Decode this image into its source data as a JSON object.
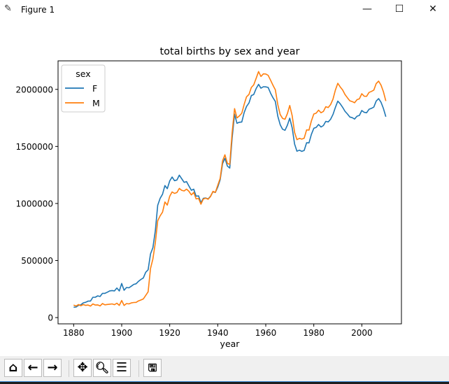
{
  "window": {
    "title": "Figure 1",
    "icon": "feather-icon",
    "controls": [
      "minimize",
      "maximize",
      "close"
    ]
  },
  "toolbar": {
    "buttons": [
      {
        "name": "home",
        "glyph": "⌂"
      },
      {
        "name": "back",
        "glyph": "🡐"
      },
      {
        "name": "forward",
        "glyph": "🡒"
      },
      {
        "name": "pan",
        "glyph": "✥"
      },
      {
        "name": "zoom",
        "glyph": "🔍"
      },
      {
        "name": "configure-subplots",
        "glyph": "☰"
      },
      {
        "name": "save",
        "glyph": "💾"
      }
    ]
  },
  "chart_data": {
    "type": "line",
    "title": "total births by sex and year",
    "xlabel": "year",
    "ylabel": "",
    "xlim": [
      1873.5,
      2016.5
    ],
    "ylim": [
      -55000,
      2250000
    ],
    "xticks": [
      1880,
      1900,
      1920,
      1940,
      1960,
      1980,
      2000
    ],
    "yticks": [
      0,
      500000,
      1000000,
      1500000,
      2000000
    ],
    "ytick_labels": [
      "0",
      "500000",
      "1000000",
      "1500000",
      "2000000"
    ],
    "legend": {
      "title": "sex",
      "placement": "top-left"
    },
    "grid": false,
    "x_start": 1880,
    "x_end": 2010,
    "series": [
      {
        "name": "F",
        "color": "#1f77b4",
        "values": [
          91000,
          92000,
          107000,
          112000,
          129000,
          134000,
          144000,
          145000,
          178000,
          178000,
          190000,
          185000,
          212000,
          212000,
          222000,
          234000,
          237000,
          234000,
          259000,
          233000,
          299000,
          239000,
          264000,
          261000,
          275000,
          291000,
          296000,
          318000,
          334000,
          347000,
          397000,
          419000,
          558000,
          612000,
          761000,
          984000,
          1044000,
          1081000,
          1157000,
          1130000,
          1198000,
          1232000,
          1200000,
          1206000,
          1248000,
          1217000,
          1185000,
          1192000,
          1153000,
          1116000,
          1125000,
          1064000,
          1067000,
          1007000,
          1045000,
          1048000,
          1040000,
          1064000,
          1103000,
          1096000,
          1143000,
          1208000,
          1348000,
          1396000,
          1328000,
          1310000,
          1573000,
          1783000,
          1703000,
          1712000,
          1714000,
          1797000,
          1850000,
          1881000,
          1946000,
          1955000,
          2008000,
          2044000,
          2010000,
          2023000,
          2022000,
          2017000,
          1967000,
          1927000,
          1894000,
          1765000,
          1691000,
          1651000,
          1641000,
          1686000,
          1748000,
          1662000,
          1521000,
          1458000,
          1467000,
          1457000,
          1465000,
          1532000,
          1531000,
          1605000,
          1659000,
          1667000,
          1692000,
          1670000,
          1683000,
          1720000,
          1715000,
          1738000,
          1780000,
          1843000,
          1897000,
          1874000,
          1843000,
          1808000,
          1785000,
          1758000,
          1752000,
          1740000,
          1765000,
          1772000,
          1815000,
          1799000,
          1795000,
          1825000,
          1834000,
          1845000,
          1898000,
          1919000,
          1887000,
          1833000,
          1760000
        ]
      },
      {
        "name": "M",
        "color": "#ff7f0e",
        "values": [
          110000,
          101000,
          114000,
          104000,
          114000,
          107000,
          110000,
          101000,
          120000,
          110000,
          111000,
          102000,
          123000,
          112000,
          115000,
          117000,
          120000,
          113000,
          126000,
          107000,
          150000,
          106000,
          123000,
          120000,
          128000,
          132000,
          133000,
          146000,
          154000,
          163000,
          194000,
          226000,
          430000,
          513000,
          656000,
          848000,
          891000,
          924000,
          1013000,
          986000,
          1064000,
          1101000,
          1088000,
          1096000,
          1132000,
          1115000,
          1110000,
          1126000,
          1107000,
          1075000,
          1097000,
          1040000,
          1045000,
          994000,
          1039000,
          1046000,
          1037000,
          1061000,
          1106000,
          1097000,
          1158000,
          1220000,
          1373000,
          1427000,
          1352000,
          1342000,
          1620000,
          1831000,
          1750000,
          1767000,
          1791000,
          1868000,
          1935000,
          1956000,
          2017000,
          2040000,
          2098000,
          2156000,
          2113000,
          2136000,
          2135000,
          2123000,
          2080000,
          2036000,
          1996000,
          1867000,
          1780000,
          1746000,
          1738000,
          1787000,
          1859000,
          1768000,
          1623000,
          1559000,
          1571000,
          1564000,
          1572000,
          1645000,
          1643000,
          1723000,
          1784000,
          1792000,
          1818000,
          1795000,
          1807000,
          1848000,
          1841000,
          1867000,
          1914000,
          1995000,
          2053000,
          2022000,
          1995000,
          1955000,
          1927000,
          1900000,
          1893000,
          1883000,
          1910000,
          1918000,
          1962000,
          1940000,
          1939000,
          1973000,
          1982000,
          1994000,
          2051000,
          2072000,
          2037000,
          1980000,
          1898000
        ]
      }
    ]
  }
}
